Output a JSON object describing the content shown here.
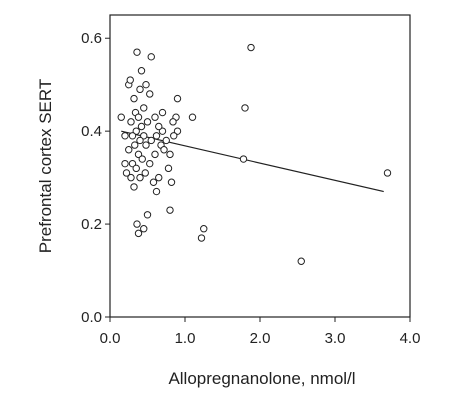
{
  "chart_data": {
    "type": "scatter",
    "xlabel": "Allopregnanolone, nmol/l",
    "ylabel": "Prefrontal cortex SERT",
    "xlim": [
      0.0,
      4.0
    ],
    "ylim": [
      0.0,
      0.65
    ],
    "x_ticks": [
      "0.0",
      "1.0",
      "2.0",
      "3.0",
      "4.0"
    ],
    "y_ticks": [
      "0.0",
      "0.2",
      "0.4",
      "0.6"
    ],
    "grid": false,
    "legend": "none",
    "series": [
      {
        "marker": "open-circle",
        "points": [
          [
            0.25,
            0.5
          ],
          [
            0.36,
            0.57
          ],
          [
            0.55,
            0.56
          ],
          [
            0.42,
            0.53
          ],
          [
            0.27,
            0.51
          ],
          [
            0.48,
            0.5
          ],
          [
            0.4,
            0.49
          ],
          [
            0.53,
            0.48
          ],
          [
            0.32,
            0.47
          ],
          [
            0.45,
            0.45
          ],
          [
            0.34,
            0.44
          ],
          [
            0.38,
            0.43
          ],
          [
            0.28,
            0.42
          ],
          [
            0.5,
            0.42
          ],
          [
            0.42,
            0.41
          ],
          [
            0.35,
            0.4
          ],
          [
            0.45,
            0.39
          ],
          [
            0.3,
            0.39
          ],
          [
            0.55,
            0.38
          ],
          [
            0.4,
            0.38
          ],
          [
            0.33,
            0.37
          ],
          [
            0.48,
            0.37
          ],
          [
            0.25,
            0.36
          ],
          [
            0.38,
            0.35
          ],
          [
            0.6,
            0.35
          ],
          [
            0.43,
            0.34
          ],
          [
            0.3,
            0.33
          ],
          [
            0.53,
            0.33
          ],
          [
            0.35,
            0.32
          ],
          [
            0.47,
            0.31
          ],
          [
            0.28,
            0.3
          ],
          [
            0.4,
            0.3
          ],
          [
            0.58,
            0.29
          ],
          [
            0.65,
            0.3
          ],
          [
            0.32,
            0.28
          ],
          [
            0.22,
            0.31
          ],
          [
            0.2,
            0.33
          ],
          [
            0.62,
            0.27
          ],
          [
            0.5,
            0.22
          ],
          [
            0.36,
            0.2
          ],
          [
            0.45,
            0.19
          ],
          [
            0.38,
            0.18
          ],
          [
            0.8,
            0.23
          ],
          [
            0.9,
            0.47
          ],
          [
            0.88,
            0.43
          ],
          [
            0.84,
            0.42
          ],
          [
            0.9,
            0.4
          ],
          [
            0.85,
            0.39
          ],
          [
            0.75,
            0.38
          ],
          [
            0.8,
            0.35
          ],
          [
            0.78,
            0.32
          ],
          [
            0.82,
            0.29
          ],
          [
            0.7,
            0.4
          ],
          [
            0.65,
            0.41
          ],
          [
            0.68,
            0.37
          ],
          [
            0.62,
            0.39
          ],
          [
            0.15,
            0.43
          ],
          [
            0.2,
            0.39
          ],
          [
            0.6,
            0.43
          ],
          [
            0.7,
            0.44
          ],
          [
            0.72,
            0.36
          ],
          [
            1.1,
            0.43
          ],
          [
            1.25,
            0.19
          ],
          [
            1.22,
            0.17
          ],
          [
            1.8,
            0.45
          ],
          [
            1.78,
            0.34
          ],
          [
            1.88,
            0.58
          ],
          [
            2.55,
            0.12
          ],
          [
            3.7,
            0.31
          ]
        ]
      }
    ],
    "trendline": {
      "x": [
        0.15,
        3.65
      ],
      "y": [
        0.4,
        0.27
      ]
    }
  }
}
